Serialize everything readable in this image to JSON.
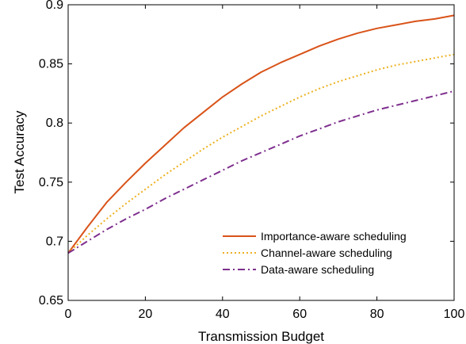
{
  "chart_data": {
    "type": "line",
    "title": "",
    "xlabel": "Transmission Budget",
    "ylabel": "Test Accuracy",
    "xlim": [
      0,
      100
    ],
    "ylim": [
      0.65,
      0.9
    ],
    "xticks": [
      0,
      20,
      40,
      60,
      80,
      100
    ],
    "yticks": [
      0.65,
      0.7,
      0.75,
      0.8,
      0.85,
      0.9
    ],
    "xtick_labels": [
      "0",
      "20",
      "40",
      "60",
      "80",
      "100"
    ],
    "ytick_labels": [
      "0.65",
      "0.7",
      "0.75",
      "0.8",
      "0.85",
      "0.9"
    ],
    "grid": false,
    "legend_position": "lower-right",
    "x": [
      0,
      5,
      10,
      15,
      20,
      25,
      30,
      35,
      40,
      45,
      50,
      55,
      60,
      65,
      70,
      75,
      80,
      85,
      90,
      95,
      100
    ],
    "series": [
      {
        "name": "Importance-aware scheduling",
        "color": "#d95319",
        "style": "solid",
        "values": [
          0.69,
          0.712,
          0.733,
          0.75,
          0.766,
          0.781,
          0.796,
          0.809,
          0.822,
          0.833,
          0.843,
          0.851,
          0.858,
          0.865,
          0.871,
          0.876,
          0.88,
          0.883,
          0.886,
          0.888,
          0.891
        ]
      },
      {
        "name": "Channel-aware scheduling",
        "color": "#edb120",
        "style": "dotted",
        "values": [
          0.69,
          0.705,
          0.719,
          0.732,
          0.744,
          0.756,
          0.767,
          0.778,
          0.788,
          0.797,
          0.806,
          0.814,
          0.822,
          0.829,
          0.835,
          0.84,
          0.845,
          0.849,
          0.852,
          0.855,
          0.858
        ]
      },
      {
        "name": "Data-aware scheduling",
        "color": "#7e2f8e",
        "style": "dashdot",
        "values": [
          0.69,
          0.7,
          0.71,
          0.719,
          0.727,
          0.736,
          0.744,
          0.752,
          0.76,
          0.768,
          0.775,
          0.782,
          0.789,
          0.795,
          0.801,
          0.806,
          0.811,
          0.815,
          0.819,
          0.823,
          0.827
        ]
      }
    ]
  }
}
